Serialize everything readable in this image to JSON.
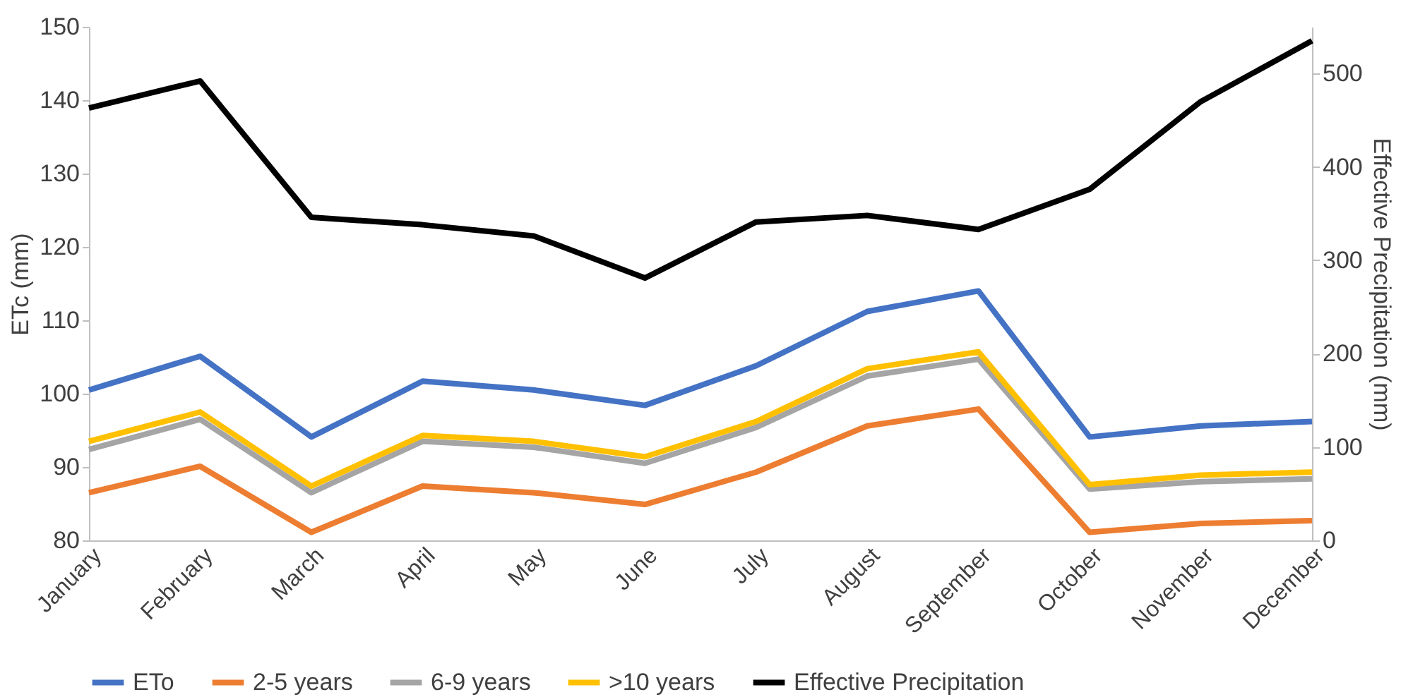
{
  "chart_data": {
    "type": "line",
    "ylabel": "ETc (mm)",
    "y2label": "Effective Precipitation (mm)",
    "categories": [
      "January",
      "February",
      "March",
      "April",
      "May",
      "June",
      "July",
      "August",
      "September",
      "October",
      "November",
      "December"
    ],
    "series": [
      {
        "name": "ETo",
        "color": "#4472c4",
        "values": [
          100.5,
          105.1,
          94.1,
          101.7,
          100.5,
          98.4,
          103.8,
          111.2,
          114.0,
          94.1,
          95.6,
          96.2
        ]
      },
      {
        "name": "2-5 years",
        "color": "#ed7d31",
        "values": [
          86.5,
          90.1,
          81.1,
          87.4,
          86.5,
          84.9,
          89.3,
          95.6,
          97.9,
          81.1,
          82.3,
          82.7
        ]
      },
      {
        "name": "6-9 years",
        "color": "#a5a5a5",
        "values": [
          92.4,
          96.5,
          86.5,
          93.5,
          92.7,
          90.5,
          95.4,
          102.4,
          104.7,
          87.0,
          88.0,
          88.4
        ]
      },
      {
        "name": ">10 years",
        "color": "#ffc000",
        "values": [
          93.5,
          97.5,
          87.4,
          94.3,
          93.5,
          91.4,
          96.2,
          103.4,
          105.7,
          87.6,
          88.9,
          89.3
        ]
      },
      {
        "name": "Effective Precipitation",
        "color": "#000000",
        "axis": "y2",
        "values": [
          463,
          492,
          346,
          338,
          326,
          281,
          341,
          348,
          333,
          376,
          470,
          535
        ]
      }
    ],
    "ylim": [
      80,
      150
    ],
    "yticks": [
      80,
      90,
      100,
      110,
      120,
      130,
      140,
      150
    ],
    "y2lim": [
      0,
      550
    ],
    "y2ticks": [
      0,
      100,
      200,
      300,
      400,
      500
    ],
    "legend": "bottom",
    "grid": false,
    "marker": "none",
    "line_style": "solid"
  }
}
